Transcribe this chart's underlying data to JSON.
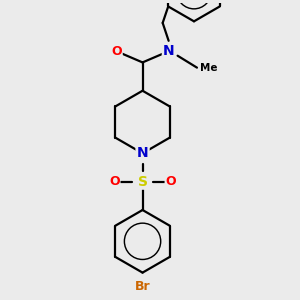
{
  "bg_color": "#ebebeb",
  "bond_color": "#000000",
  "bond_width": 1.6,
  "atom_colors": {
    "O": "#ff0000",
    "N": "#0000cc",
    "S": "#cccc00",
    "Br": "#cc6600",
    "C": "#000000"
  },
  "font_size": 9,
  "scale": 1.0
}
